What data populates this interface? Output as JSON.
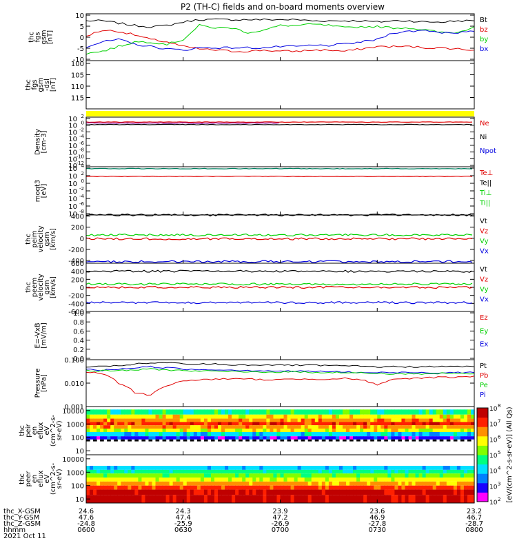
{
  "title": "P2 (TH-C) fields and on-board moments overview",
  "footer": {
    "date": "2021 Oct 11",
    "row_labels": [
      "thc_X-GSM",
      "thc_Y-GSM",
      "thc_Z-GSM",
      "hhmm"
    ],
    "rows": [
      [
        "24.6",
        "24.3",
        "23.9",
        "23.6",
        "23.2"
      ],
      [
        "47.6",
        "47.4",
        "47.2",
        "46.9",
        "46.7"
      ],
      [
        "-24.8",
        "-25.9",
        "-26.9",
        "-27.8",
        "-28.7"
      ],
      [
        "0600",
        "0630",
        "0700",
        "0730",
        "0800"
      ]
    ]
  },
  "colorbar": {
    "label": "[eV/(cm^2-s-sr-eV)] (All Qs)",
    "ticks": [
      "10^2",
      "10^3",
      "10^4",
      "10^5",
      "10^6",
      "10^7",
      "10^8"
    ],
    "colors": [
      "#ff00ff",
      "#1a00ff",
      "#0080ff",
      "#00e0ff",
      "#00ff80",
      "#80ff00",
      "#ffff00",
      "#ff9000",
      "#ff2000",
      "#c00000"
    ]
  },
  "chart_data": [
    {
      "type": "line",
      "id": "fgs",
      "ylabel": [
        "thc",
        "fgs",
        "gsm",
        "[nT]"
      ],
      "ylim": [
        -10,
        10
      ],
      "yticks": [
        "10",
        "5",
        "0",
        "-5",
        "-10"
      ],
      "legend": [
        {
          "name": "Bt",
          "color": "#000000"
        },
        {
          "name": "bz",
          "color": "#e00000"
        },
        {
          "name": "by",
          "color": "#00d000"
        },
        {
          "name": "bx",
          "color": "#0000e0"
        }
      ],
      "x": [
        0,
        5,
        10,
        15,
        20,
        25,
        30,
        35,
        40,
        45,
        50,
        55,
        60,
        65,
        70,
        75,
        80,
        85,
        90,
        95,
        100,
        105,
        110,
        115,
        120
      ],
      "series": [
        {
          "name": "Bt",
          "color": "#000000",
          "values": [
            7,
            7,
            6,
            5,
            4.5,
            5,
            6.5,
            7.5,
            7.5,
            7.5,
            7.5,
            7.5,
            7.5,
            7.5,
            7,
            7,
            7,
            7,
            6.5,
            7,
            7,
            6.5,
            6.5,
            7,
            7
          ]
        },
        {
          "name": "bz",
          "color": "#e00000",
          "values": [
            0.5,
            3,
            2.5,
            1,
            -1,
            -2,
            -4,
            -5,
            -5.5,
            -6,
            -6,
            -5.5,
            -6,
            -6,
            -5.5,
            -5.5,
            -6,
            -5,
            -4,
            -4,
            -4,
            -4.5,
            -4.5,
            -5,
            -5.5
          ]
        },
        {
          "name": "by",
          "color": "#00d000",
          "values": [
            -7,
            -6,
            -4,
            -2,
            -2,
            -3,
            -1,
            5,
            4,
            4,
            2,
            3,
            5,
            5,
            5.5,
            5,
            4,
            4.5,
            4.5,
            4,
            4,
            3,
            2,
            2,
            4.5
          ]
        },
        {
          "name": "bx",
          "color": "#0000e0",
          "values": [
            -4,
            -2,
            -1,
            -3,
            -4,
            -5,
            -5.5,
            -4.5,
            -4.5,
            -4.5,
            -4.5,
            -4.5,
            -4,
            -4,
            -3.5,
            -3.5,
            -3,
            -2,
            -1,
            2,
            2.5,
            3,
            2,
            2,
            2.5
          ]
        }
      ]
    },
    {
      "type": "line",
      "id": "fgs_dsl",
      "ylabel": [
        "thc",
        "fgs",
        "gsm",
        "-dsl",
        "[nT]"
      ],
      "ylim": [
        120,
        100
      ],
      "yticks": [
        "100",
        "105",
        "110",
        "115"
      ],
      "legend": [],
      "series": []
    },
    {
      "type": "flag_bar",
      "id": "mode_bar",
      "color": "#ffff00"
    },
    {
      "type": "line",
      "id": "density",
      "ylabel": [
        "Density",
        "[cm-3]"
      ],
      "yticks": [
        "10^2",
        "10^0",
        "10^-2",
        "10^-4",
        "10^-6",
        "10^-8",
        "10^-10",
        "10^-12"
      ],
      "legend": [
        {
          "name": "Ne",
          "color": "#e00000"
        },
        {
          "name": "Ni",
          "color": "#000000"
        },
        {
          "name": "Npot",
          "color": "#0000e0"
        }
      ],
      "series": [
        {
          "name": "Ni",
          "color": "#000000",
          "level": 0.15
        },
        {
          "name": "Ne",
          "color": "#e00000",
          "level": 0.1
        },
        {
          "name": "Npot",
          "color": "#8000a0",
          "level": 0.12,
          "x_end": 60
        }
      ]
    },
    {
      "type": "line",
      "id": "temperature",
      "ylabel": [
        "moqt3",
        "[eV]"
      ],
      "yticks": [
        "10^4",
        "10^2",
        "10^0",
        "10^-2",
        "10^-4",
        "10^-6",
        "10^-8"
      ],
      "legend": [
        {
          "name": "Te⊥",
          "color": "#e00000"
        },
        {
          "name": "Te||",
          "color": "#000000"
        },
        {
          "name": "Ti⊥",
          "color": "#00d000"
        },
        {
          "name": "Ti||",
          "color": "#00d000"
        }
      ],
      "series": [
        {
          "name": "Ti⊥",
          "color": "#008060",
          "level": 0.04
        },
        {
          "name": "Te⊥",
          "color": "#e00000",
          "level": 0.2
        }
      ]
    },
    {
      "type": "line",
      "id": "peim_velocity",
      "ylabel": [
        "thc",
        "peim",
        "velocity",
        "gsm",
        "[km/s]"
      ],
      "ylim": [
        -450,
        420
      ],
      "yticks": [
        "400",
        "200",
        "0",
        "-200",
        "-400"
      ],
      "yticks_values": [
        400,
        200,
        0,
        -200,
        -400
      ],
      "legend": [
        {
          "name": "Vt",
          "color": "#000000"
        },
        {
          "name": "Vz",
          "color": "#e00000"
        },
        {
          "name": "Vy",
          "color": "#00d000"
        },
        {
          "name": "Vx",
          "color": "#0000e0"
        }
      ],
      "series": [
        {
          "name": "Vt",
          "color": "#000000",
          "level": 420
        },
        {
          "name": "Vy",
          "color": "#00d000",
          "level": 60
        },
        {
          "name": "Vz",
          "color": "#e00000",
          "level": -10
        },
        {
          "name": "Vx",
          "color": "#0000e0",
          "level": -420
        }
      ]
    },
    {
      "type": "line",
      "id": "peem_velocity",
      "ylabel": [
        "thc",
        "peem",
        "velocity",
        "gsm",
        "[km/s]"
      ],
      "ylim": [
        -600,
        600
      ],
      "yticks": [
        "600",
        "400",
        "200",
        "0",
        "-200",
        "-400",
        "-600"
      ],
      "yticks_values": [
        600,
        400,
        200,
        0,
        -200,
        -400,
        -600
      ],
      "legend": [
        {
          "name": "Vt",
          "color": "#000000"
        },
        {
          "name": "Vz",
          "color": "#e00000"
        },
        {
          "name": "Vy",
          "color": "#00d000"
        },
        {
          "name": "Vx",
          "color": "#0000e0"
        }
      ],
      "series": [
        {
          "name": "Vt",
          "color": "#000000",
          "level": 400
        },
        {
          "name": "Vy",
          "color": "#00d000",
          "level": 80
        },
        {
          "name": "Vz",
          "color": "#e00000",
          "level": 0
        },
        {
          "name": "Vx",
          "color": "#0000e0",
          "level": -380
        }
      ]
    },
    {
      "type": "line",
      "id": "efield",
      "ylabel": [
        "E=-VxB",
        "[mV/m]"
      ],
      "ylim": [
        0,
        1
      ],
      "yticks": [
        "1.0",
        "0.8",
        "0.6",
        "0.4",
        "0.2",
        "0.0"
      ],
      "legend": [
        {
          "name": "Ez",
          "color": "#e00000"
        },
        {
          "name": "Ey",
          "color": "#00d000"
        },
        {
          "name": "Ex",
          "color": "#0000e0"
        }
      ],
      "series": []
    },
    {
      "type": "line",
      "id": "pressure",
      "ylabel": [
        "Pressure",
        "[nPa]"
      ],
      "yscale": "log",
      "ylim": [
        0.001,
        0.1
      ],
      "yticks": [
        "0.100",
        "0.010",
        "0.001"
      ],
      "yticks_values": [
        0.1,
        0.01,
        0.001
      ],
      "legend": [
        {
          "name": "Pt",
          "color": "#000000"
        },
        {
          "name": "Pb",
          "color": "#e00000"
        },
        {
          "name": "Pe",
          "color": "#00d000"
        },
        {
          "name": "Pi",
          "color": "#0000e0"
        }
      ],
      "x": [
        0,
        5,
        10,
        15,
        20,
        25,
        30,
        35,
        40,
        45,
        50,
        55,
        60,
        65,
        70,
        75,
        80,
        85,
        90,
        95,
        100,
        105,
        110,
        115,
        120
      ],
      "series": [
        {
          "name": "Pt",
          "color": "#000000",
          "values": [
            0.05,
            0.05,
            0.055,
            0.065,
            0.07,
            0.075,
            0.065,
            0.065,
            0.065,
            0.06,
            0.06,
            0.06,
            0.06,
            0.058,
            0.058,
            0.055,
            0.055,
            0.052,
            0.05,
            0.05,
            0.05,
            0.05,
            0.05,
            0.052,
            0.05
          ]
        },
        {
          "name": "Pi",
          "color": "#0000e0",
          "values": [
            0.04,
            0.035,
            0.04,
            0.045,
            0.05,
            0.045,
            0.04,
            0.038,
            0.038,
            0.036,
            0.035,
            0.034,
            0.033,
            0.032,
            0.032,
            0.031,
            0.03,
            0.028,
            0.028,
            0.028,
            0.029,
            0.028,
            0.028,
            0.029,
            0.028
          ]
        },
        {
          "name": "Pe",
          "color": "#00d000",
          "values": [
            0.035,
            0.033,
            0.035,
            0.036,
            0.04,
            0.037,
            0.034,
            0.033,
            0.032,
            0.031,
            0.03,
            0.03,
            0.03,
            0.03,
            0.029,
            0.029,
            0.028,
            0.027,
            0.026,
            0.025,
            0.025,
            0.025,
            0.026,
            0.026,
            0.025
          ]
        },
        {
          "name": "Pb",
          "color": "#e00000",
          "values": [
            0.03,
            0.025,
            0.01,
            0.004,
            0.003,
            0.008,
            0.012,
            0.014,
            0.015,
            0.015,
            0.015,
            0.014,
            0.014,
            0.015,
            0.015,
            0.015,
            0.016,
            0.014,
            0.008,
            0.014,
            0.016,
            0.017,
            0.018,
            0.018,
            0.02
          ]
        }
      ]
    },
    {
      "type": "heatmap",
      "id": "peir",
      "ylabel": [
        "thc",
        "peir",
        "en",
        "eflux",
        "eV",
        "(cm^2-s-",
        "sr-eV)"
      ],
      "yscale": "log",
      "ylim": [
        5,
        20000
      ],
      "yticks": [
        "10000",
        "1000",
        "100",
        "10"
      ],
      "yticks_values": [
        10000,
        1000,
        100,
        10
      ]
    },
    {
      "type": "heatmap",
      "id": "peer",
      "ylabel": [
        "thc",
        "peer",
        "en",
        "eflux",
        "eV",
        "(cm^2-s-",
        "sr-eV)"
      ],
      "yscale": "log",
      "ylim": [
        5,
        20000
      ],
      "yticks": [
        "10000",
        "1000",
        "100",
        "10"
      ],
      "yticks_values": [
        10000,
        1000,
        100,
        10
      ]
    }
  ]
}
